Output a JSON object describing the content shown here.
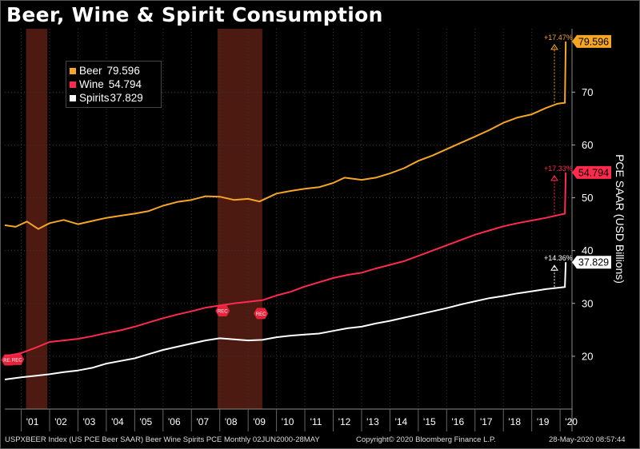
{
  "title": "Beer, Wine & Spirit Consumption",
  "footer": {
    "left": "USPXBEER Index (US PCE Beer SAAR) Beer Wine Spirits PCE  Monthly 02JUN2000-28MAY",
    "center": "Copyright© 2020 Bloomberg Finance L.P.",
    "right": "28-May-2020 08:57:44"
  },
  "colors": {
    "beer": "#f5a623",
    "wine": "#ff2a4d",
    "spirits": "#ffffff",
    "recession": "#5a1e14"
  },
  "chart_data": {
    "type": "line",
    "title": "Beer, Wine & Spirit Consumption",
    "xlabel": "",
    "ylabel": "PCE SAAR (USD Billions)",
    "xlim": [
      2000.42,
      2020.42
    ],
    "ylim": [
      10,
      82
    ],
    "yticks": [
      20,
      30,
      40,
      50,
      60,
      70
    ],
    "xtick_labels": [
      "'01",
      "'02",
      "'03",
      "'04",
      "'05",
      "'06",
      "'07",
      "'08",
      "'09",
      "'10",
      "'11",
      "'12",
      "'13",
      "'14",
      "'15",
      "'16",
      "'17",
      "'18",
      "'19",
      "'20"
    ],
    "recessions": [
      [
        2001.17,
        2001.92
      ],
      [
        2007.92,
        2009.5
      ]
    ],
    "recession_label": "REC",
    "legend": "top-left",
    "series": [
      {
        "name": "Beer",
        "key": "beer",
        "last": "79.596",
        "change": "+17.47%",
        "x": [
          2000.42,
          2000.8,
          2001.2,
          2001.6,
          2002.0,
          2002.5,
          2003.0,
          2003.5,
          2004.0,
          2004.5,
          2005.0,
          2005.5,
          2006.0,
          2006.5,
          2007.0,
          2007.5,
          2008.0,
          2008.5,
          2009.0,
          2009.4,
          2010.0,
          2010.5,
          2011.0,
          2011.5,
          2012.0,
          2012.4,
          2013.0,
          2013.5,
          2014.0,
          2014.5,
          2015.0,
          2015.5,
          2016.0,
          2016.5,
          2017.0,
          2017.5,
          2018.0,
          2018.5,
          2019.0,
          2019.5,
          2019.9,
          2020.17,
          2020.2
        ],
        "values": [
          44.8,
          44.5,
          45.5,
          44.1,
          45.2,
          45.8,
          45.0,
          45.6,
          46.2,
          46.6,
          47.0,
          47.5,
          48.5,
          49.2,
          49.6,
          50.3,
          50.2,
          49.6,
          49.8,
          49.3,
          50.8,
          51.3,
          51.7,
          52.0,
          52.8,
          53.8,
          53.4,
          53.8,
          54.6,
          55.6,
          57.0,
          58.0,
          59.2,
          60.4,
          61.6,
          62.8,
          64.2,
          65.2,
          65.8,
          67.0,
          67.8,
          68.0,
          79.6
        ]
      },
      {
        "name": "Wine",
        "key": "wine",
        "last": "54.794",
        "change": "+17.33%",
        "x": [
          2000.42,
          2001.0,
          2001.5,
          2002.0,
          2002.5,
          2003.0,
          2003.5,
          2004.0,
          2004.5,
          2005.0,
          2005.5,
          2006.0,
          2006.5,
          2007.0,
          2007.5,
          2008.0,
          2008.5,
          2009.0,
          2009.5,
          2010.0,
          2010.5,
          2011.0,
          2011.5,
          2012.0,
          2012.5,
          2013.0,
          2013.5,
          2014.0,
          2014.5,
          2015.0,
          2015.5,
          2016.0,
          2016.5,
          2017.0,
          2017.5,
          2018.0,
          2018.5,
          2019.0,
          2019.5,
          2020.17,
          2020.2
        ],
        "values": [
          20.0,
          20.6,
          21.6,
          22.7,
          23.0,
          23.3,
          23.8,
          24.4,
          24.9,
          25.6,
          26.4,
          27.2,
          27.9,
          28.5,
          29.2,
          29.6,
          30.0,
          30.3,
          30.6,
          31.5,
          32.2,
          33.2,
          34.0,
          34.8,
          35.4,
          35.8,
          36.6,
          37.3,
          38.0,
          39.0,
          40.0,
          41.0,
          42.0,
          43.0,
          43.8,
          44.6,
          45.2,
          45.7,
          46.2,
          47.0,
          54.8
        ]
      },
      {
        "name": "Spirits",
        "key": "spirits",
        "last": "37.829",
        "change": "+14.36%",
        "x": [
          2000.42,
          2001.0,
          2001.5,
          2002.0,
          2002.5,
          2003.0,
          2003.5,
          2004.0,
          2004.5,
          2005.0,
          2005.5,
          2006.0,
          2006.5,
          2007.0,
          2007.5,
          2008.0,
          2008.5,
          2009.0,
          2009.5,
          2010.0,
          2010.5,
          2011.0,
          2011.5,
          2012.0,
          2012.5,
          2013.0,
          2013.5,
          2014.0,
          2014.5,
          2015.0,
          2015.5,
          2016.0,
          2016.5,
          2017.0,
          2017.5,
          2018.0,
          2018.5,
          2019.0,
          2019.5,
          2020.17,
          2020.2
        ],
        "values": [
          15.6,
          16.0,
          16.3,
          16.6,
          17.0,
          17.3,
          17.8,
          18.6,
          19.1,
          19.6,
          20.4,
          21.2,
          21.8,
          22.4,
          23.0,
          23.4,
          23.2,
          23.0,
          23.1,
          23.6,
          23.9,
          24.1,
          24.3,
          24.8,
          25.3,
          25.6,
          26.2,
          26.7,
          27.3,
          27.9,
          28.5,
          29.1,
          29.8,
          30.4,
          31.0,
          31.4,
          31.9,
          32.3,
          32.7,
          33.1,
          37.8
        ]
      }
    ]
  }
}
